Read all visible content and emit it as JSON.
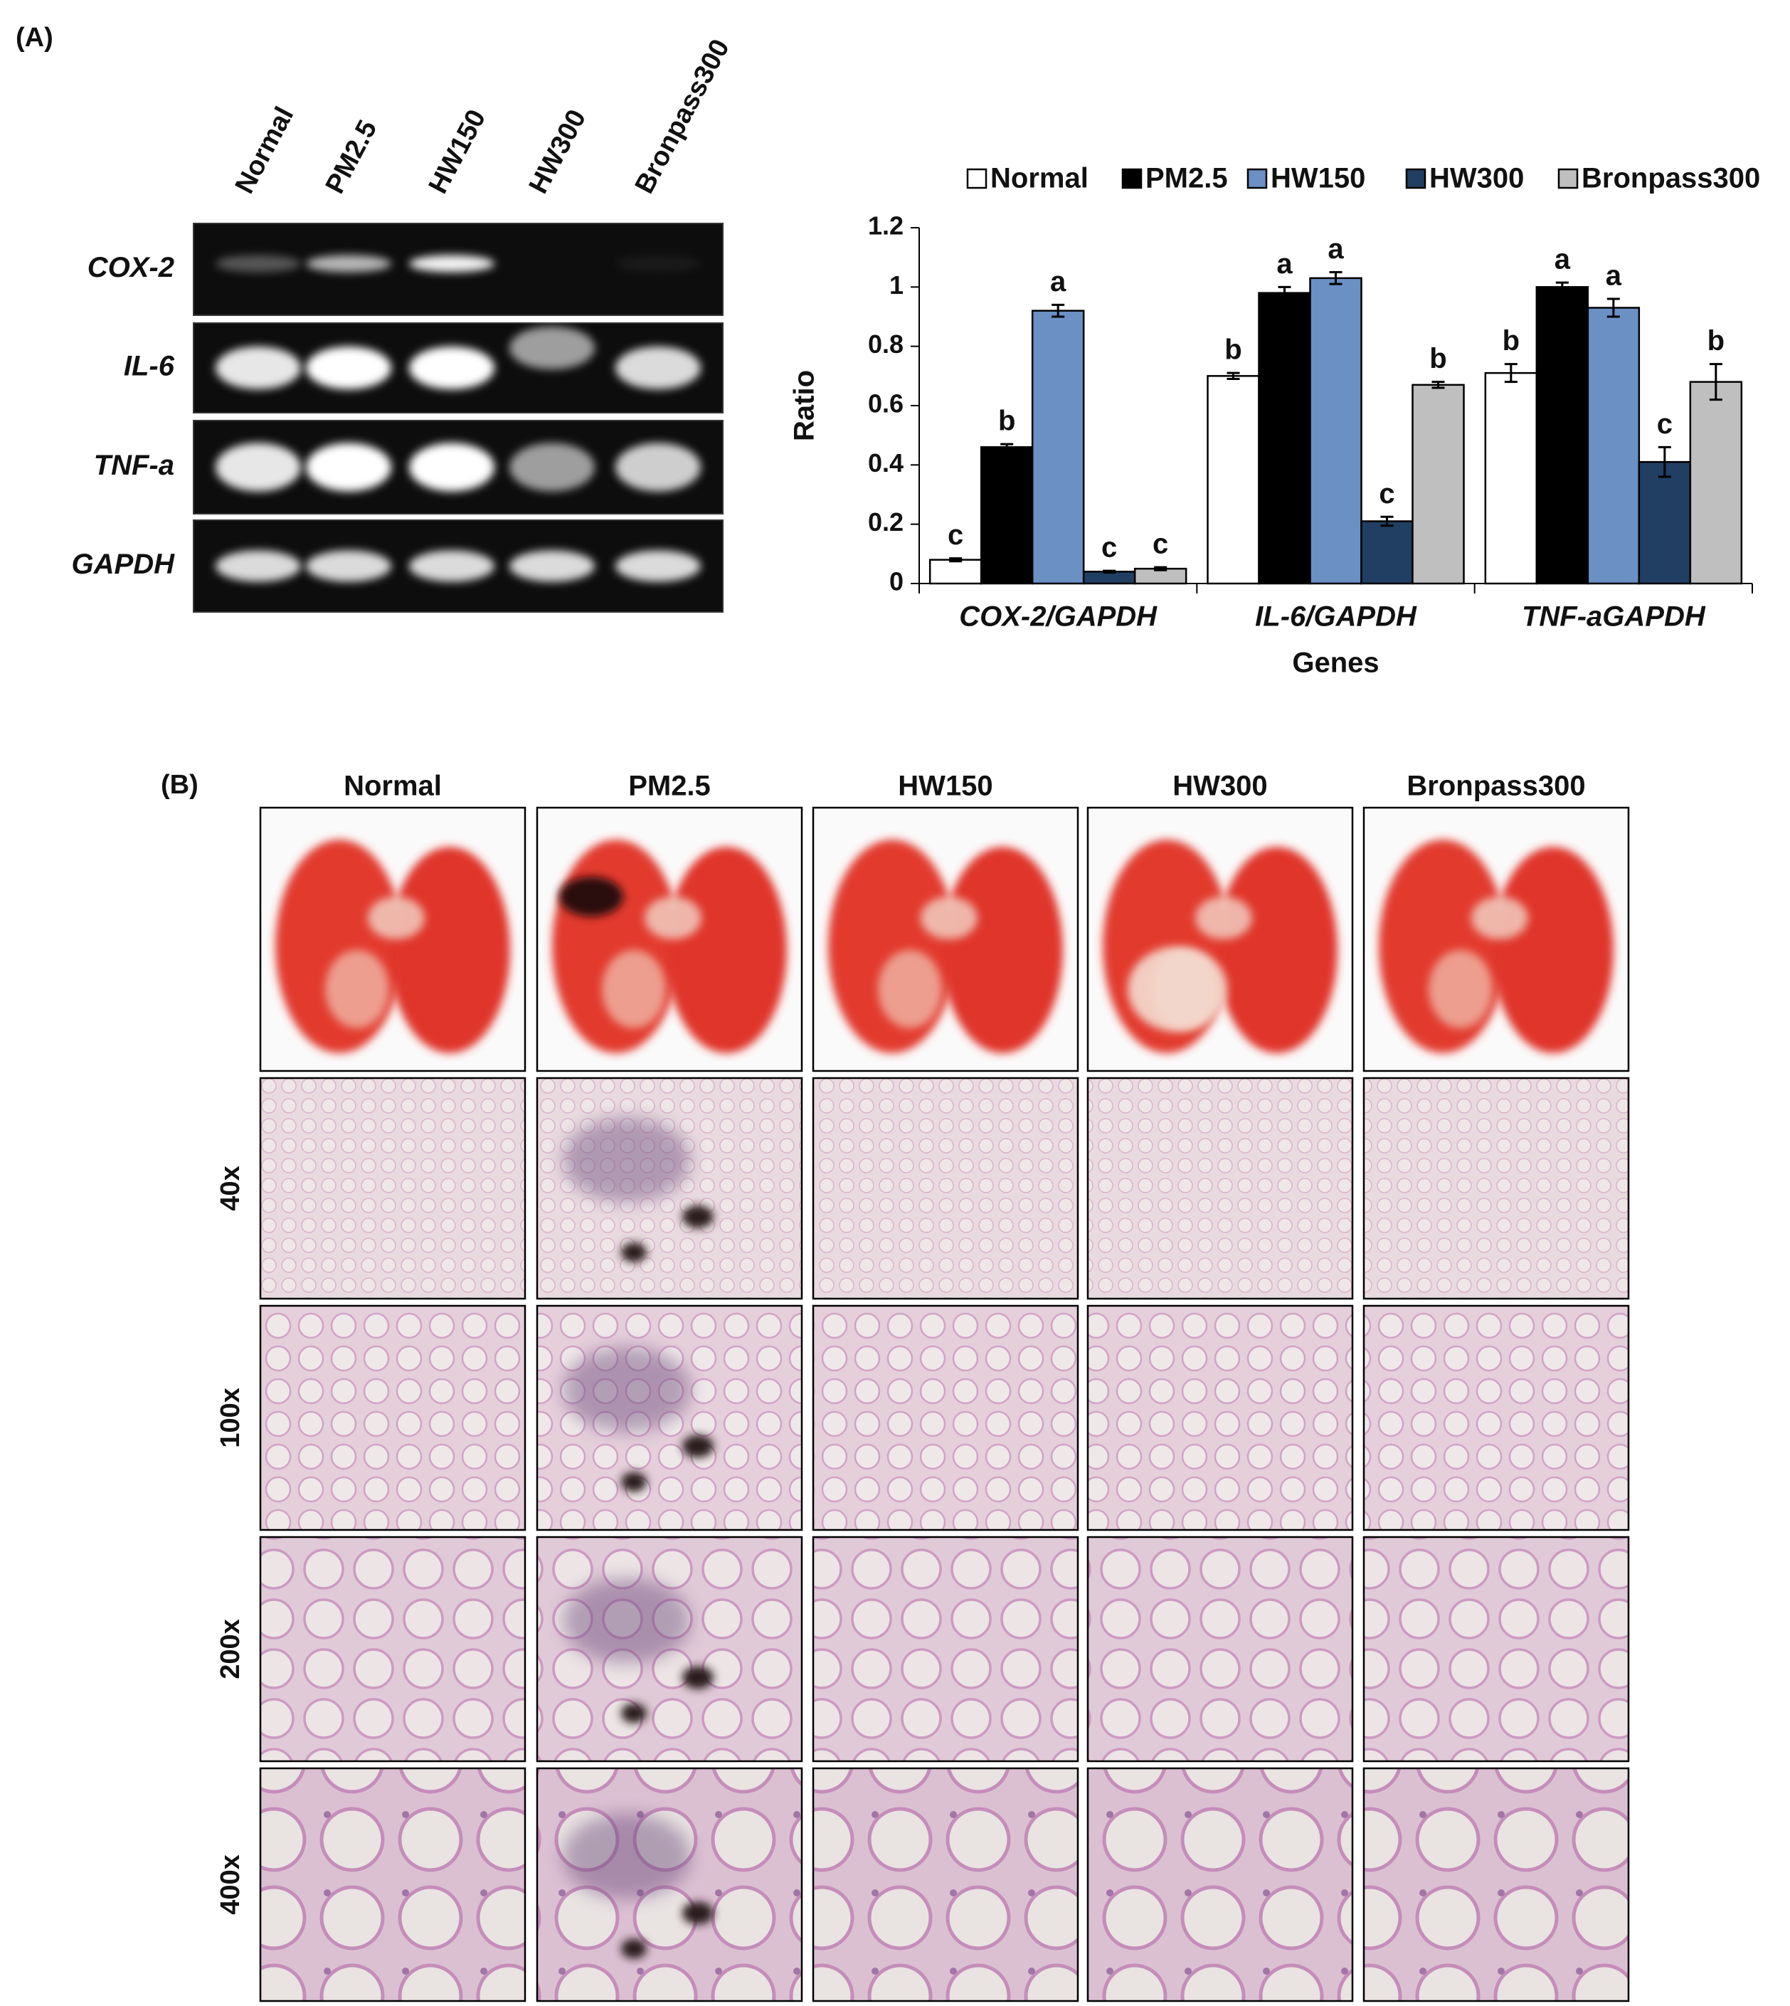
{
  "panel_a": {
    "label": "(A)",
    "gel": {
      "lanes": [
        "Normal",
        "PM2.5",
        "HW150",
        "HW300",
        "Bronpass300"
      ],
      "genes": [
        "COX-2",
        "IL-6",
        "TNF-a",
        "GAPDH"
      ]
    }
  },
  "chart_data": {
    "type": "bar",
    "categories": [
      "COX-2/GAPDH",
      "IL-6/GAPDH",
      "TNF-aGAPDH"
    ],
    "series": [
      {
        "name": "Normal",
        "color": "#ffffff",
        "values": [
          0.08,
          0.7,
          0.71
        ],
        "errors": [
          0.005,
          0.01,
          0.03
        ],
        "letters": [
          "c",
          "b",
          "b"
        ]
      },
      {
        "name": "PM2.5",
        "color": "#000000",
        "values": [
          0.46,
          0.98,
          1.0
        ],
        "errors": [
          0.01,
          0.02,
          0.015
        ],
        "letters": [
          "b",
          "a",
          "a"
        ]
      },
      {
        "name": "HW150",
        "color": "#6a90c4",
        "values": [
          0.92,
          1.03,
          0.93
        ],
        "errors": [
          0.02,
          0.02,
          0.03
        ],
        "letters": [
          "a",
          "a",
          "a"
        ]
      },
      {
        "name": "HW300",
        "color": "#213f63",
        "values": [
          0.04,
          0.21,
          0.41
        ],
        "errors": [
          0.003,
          0.015,
          0.05
        ],
        "letters": [
          "c",
          "c",
          "c"
        ]
      },
      {
        "name": "Bronpass300",
        "color": "#bfbfbf",
        "values": [
          0.05,
          0.67,
          0.68
        ],
        "errors": [
          0.005,
          0.01,
          0.06
        ],
        "letters": [
          "c",
          "b",
          "b"
        ]
      }
    ],
    "ylim": [
      0,
      1.2
    ],
    "yticks": [
      0,
      0.2,
      0.4,
      0.6,
      0.8,
      1,
      1.2
    ],
    "ylabel": "Ratio",
    "xlabel": "Genes",
    "legend": "top"
  },
  "panel_b": {
    "label": "(B)",
    "columns": [
      "Normal",
      "PM2.5",
      "HW150",
      "HW300",
      "Bronpass300"
    ],
    "rows": [
      "40x",
      "100x",
      "200x",
      "400x"
    ]
  }
}
